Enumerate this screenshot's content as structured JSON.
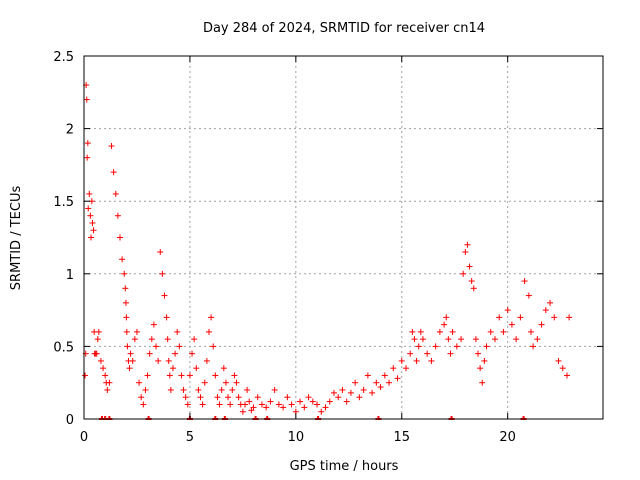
{
  "chart_data": {
    "type": "scatter",
    "title": "Day 284 of 2024, SRMTID for receiver cn14",
    "xlabel": "GPS time / hours",
    "ylabel": "SRMTID / TECUs",
    "xlim": [
      0,
      24.5
    ],
    "ylim": [
      0,
      2.5
    ],
    "xticks": [
      0,
      5,
      10,
      15,
      20
    ],
    "yticks": [
      0,
      0.5,
      1,
      1.5,
      2,
      2.5
    ],
    "grid": true,
    "marker": "+",
    "marker_color": "#ff0000",
    "series": [
      {
        "name": "cn14",
        "x": [
          0.05,
          0.08,
          0.1,
          0.13,
          0.15,
          0.18,
          0.2,
          0.25,
          0.3,
          0.33,
          0.37,
          0.4,
          0.45,
          0.48,
          0.5,
          0.55,
          0.6,
          0.65,
          0.7,
          0.8,
          0.9,
          1.0,
          1.05,
          1.1,
          1.2,
          1.3,
          1.4,
          1.5,
          1.6,
          1.7,
          1.8,
          1.9,
          1.95,
          1.98,
          2.0,
          2.02,
          2.05,
          2.1,
          2.15,
          2.2,
          2.3,
          2.4,
          2.5,
          2.6,
          2.7,
          2.8,
          2.9,
          3.0,
          3.1,
          3.2,
          3.3,
          3.4,
          3.5,
          3.6,
          3.7,
          3.8,
          3.9,
          3.95,
          4.0,
          4.05,
          4.1,
          4.2,
          4.3,
          4.4,
          4.5,
          4.6,
          4.7,
          4.8,
          4.9,
          5.0,
          5.1,
          5.2,
          5.3,
          5.4,
          5.5,
          5.6,
          5.7,
          5.8,
          5.9,
          6.0,
          6.1,
          6.2,
          6.3,
          6.4,
          6.5,
          6.6,
          6.7,
          6.8,
          6.9,
          7.0,
          7.1,
          7.2,
          7.3,
          7.4,
          7.5,
          7.6,
          7.7,
          7.8,
          7.9,
          8.0,
          8.2,
          8.4,
          8.6,
          8.8,
          9.0,
          9.2,
          9.4,
          9.6,
          9.8,
          10.0,
          10.2,
          10.4,
          10.6,
          10.8,
          11.0,
          11.2,
          11.4,
          11.6,
          11.8,
          12.0,
          12.2,
          12.4,
          12.6,
          12.8,
          13.0,
          13.2,
          13.4,
          13.6,
          13.8,
          14.0,
          14.2,
          14.4,
          14.6,
          14.8,
          15.0,
          15.2,
          15.4,
          15.5,
          15.6,
          15.7,
          15.8,
          15.9,
          16.0,
          16.2,
          16.4,
          16.6,
          16.8,
          17.0,
          17.1,
          17.2,
          17.3,
          17.4,
          17.6,
          17.8,
          17.9,
          18.0,
          18.1,
          18.2,
          18.3,
          18.4,
          18.5,
          18.6,
          18.7,
          18.8,
          18.9,
          19.0,
          19.2,
          19.4,
          19.6,
          19.8,
          20.0,
          20.2,
          20.4,
          20.6,
          20.8,
          21.0,
          21.1,
          21.2,
          21.4,
          21.6,
          21.8,
          22.0,
          22.2,
          22.4,
          22.6,
          22.8,
          22.9
        ],
        "y": [
          0.3,
          0.45,
          2.3,
          2.2,
          1.8,
          1.9,
          1.45,
          1.55,
          1.4,
          1.25,
          1.5,
          1.35,
          1.3,
          0.6,
          0.45,
          0.45,
          0.45,
          0.55,
          0.6,
          0.4,
          0.35,
          0.3,
          0.25,
          0.2,
          0.25,
          1.88,
          1.7,
          1.55,
          1.4,
          1.25,
          1.1,
          1.0,
          0.9,
          0.8,
          0.7,
          0.6,
          0.5,
          0.4,
          0.35,
          0.45,
          0.4,
          0.55,
          0.6,
          0.25,
          0.15,
          0.1,
          0.2,
          0.3,
          0.45,
          0.55,
          0.65,
          0.5,
          0.4,
          1.15,
          1.0,
          0.85,
          0.7,
          0.55,
          0.4,
          0.3,
          0.2,
          0.35,
          0.45,
          0.6,
          0.5,
          0.3,
          0.2,
          0.15,
          0.1,
          0.3,
          0.45,
          0.55,
          0.35,
          0.2,
          0.15,
          0.1,
          0.25,
          0.4,
          0.6,
          0.7,
          0.5,
          0.3,
          0.15,
          0.1,
          0.2,
          0.35,
          0.25,
          0.15,
          0.1,
          0.2,
          0.3,
          0.25,
          0.15,
          0.1,
          0.05,
          0.1,
          0.2,
          0.12,
          0.06,
          0.08,
          0.15,
          0.1,
          0.08,
          0.12,
          0.2,
          0.1,
          0.08,
          0.15,
          0.1,
          0.05,
          0.12,
          0.08,
          0.15,
          0.12,
          0.1,
          0.05,
          0.08,
          0.12,
          0.18,
          0.15,
          0.2,
          0.12,
          0.18,
          0.25,
          0.15,
          0.2,
          0.3,
          0.18,
          0.25,
          0.22,
          0.3,
          0.25,
          0.35,
          0.28,
          0.4,
          0.35,
          0.45,
          0.6,
          0.55,
          0.4,
          0.5,
          0.6,
          0.55,
          0.45,
          0.4,
          0.5,
          0.6,
          0.65,
          0.7,
          0.55,
          0.45,
          0.6,
          0.5,
          0.55,
          1.0,
          1.15,
          1.2,
          1.05,
          0.95,
          0.9,
          0.55,
          0.45,
          0.35,
          0.25,
          0.4,
          0.5,
          0.6,
          0.55,
          0.7,
          0.6,
          0.75,
          0.65,
          0.55,
          0.7,
          0.95,
          0.85,
          0.6,
          0.5,
          0.55,
          0.65,
          0.75,
          0.8,
          0.7,
          0.4,
          0.35,
          0.3,
          0.7
        ]
      }
    ],
    "low_markers_x": [
      0.85,
      1.0,
      1.2,
      3.05,
      5.0,
      6.2,
      6.65,
      8.1,
      8.65,
      11.05,
      13.9,
      17.35,
      20.75
    ]
  }
}
